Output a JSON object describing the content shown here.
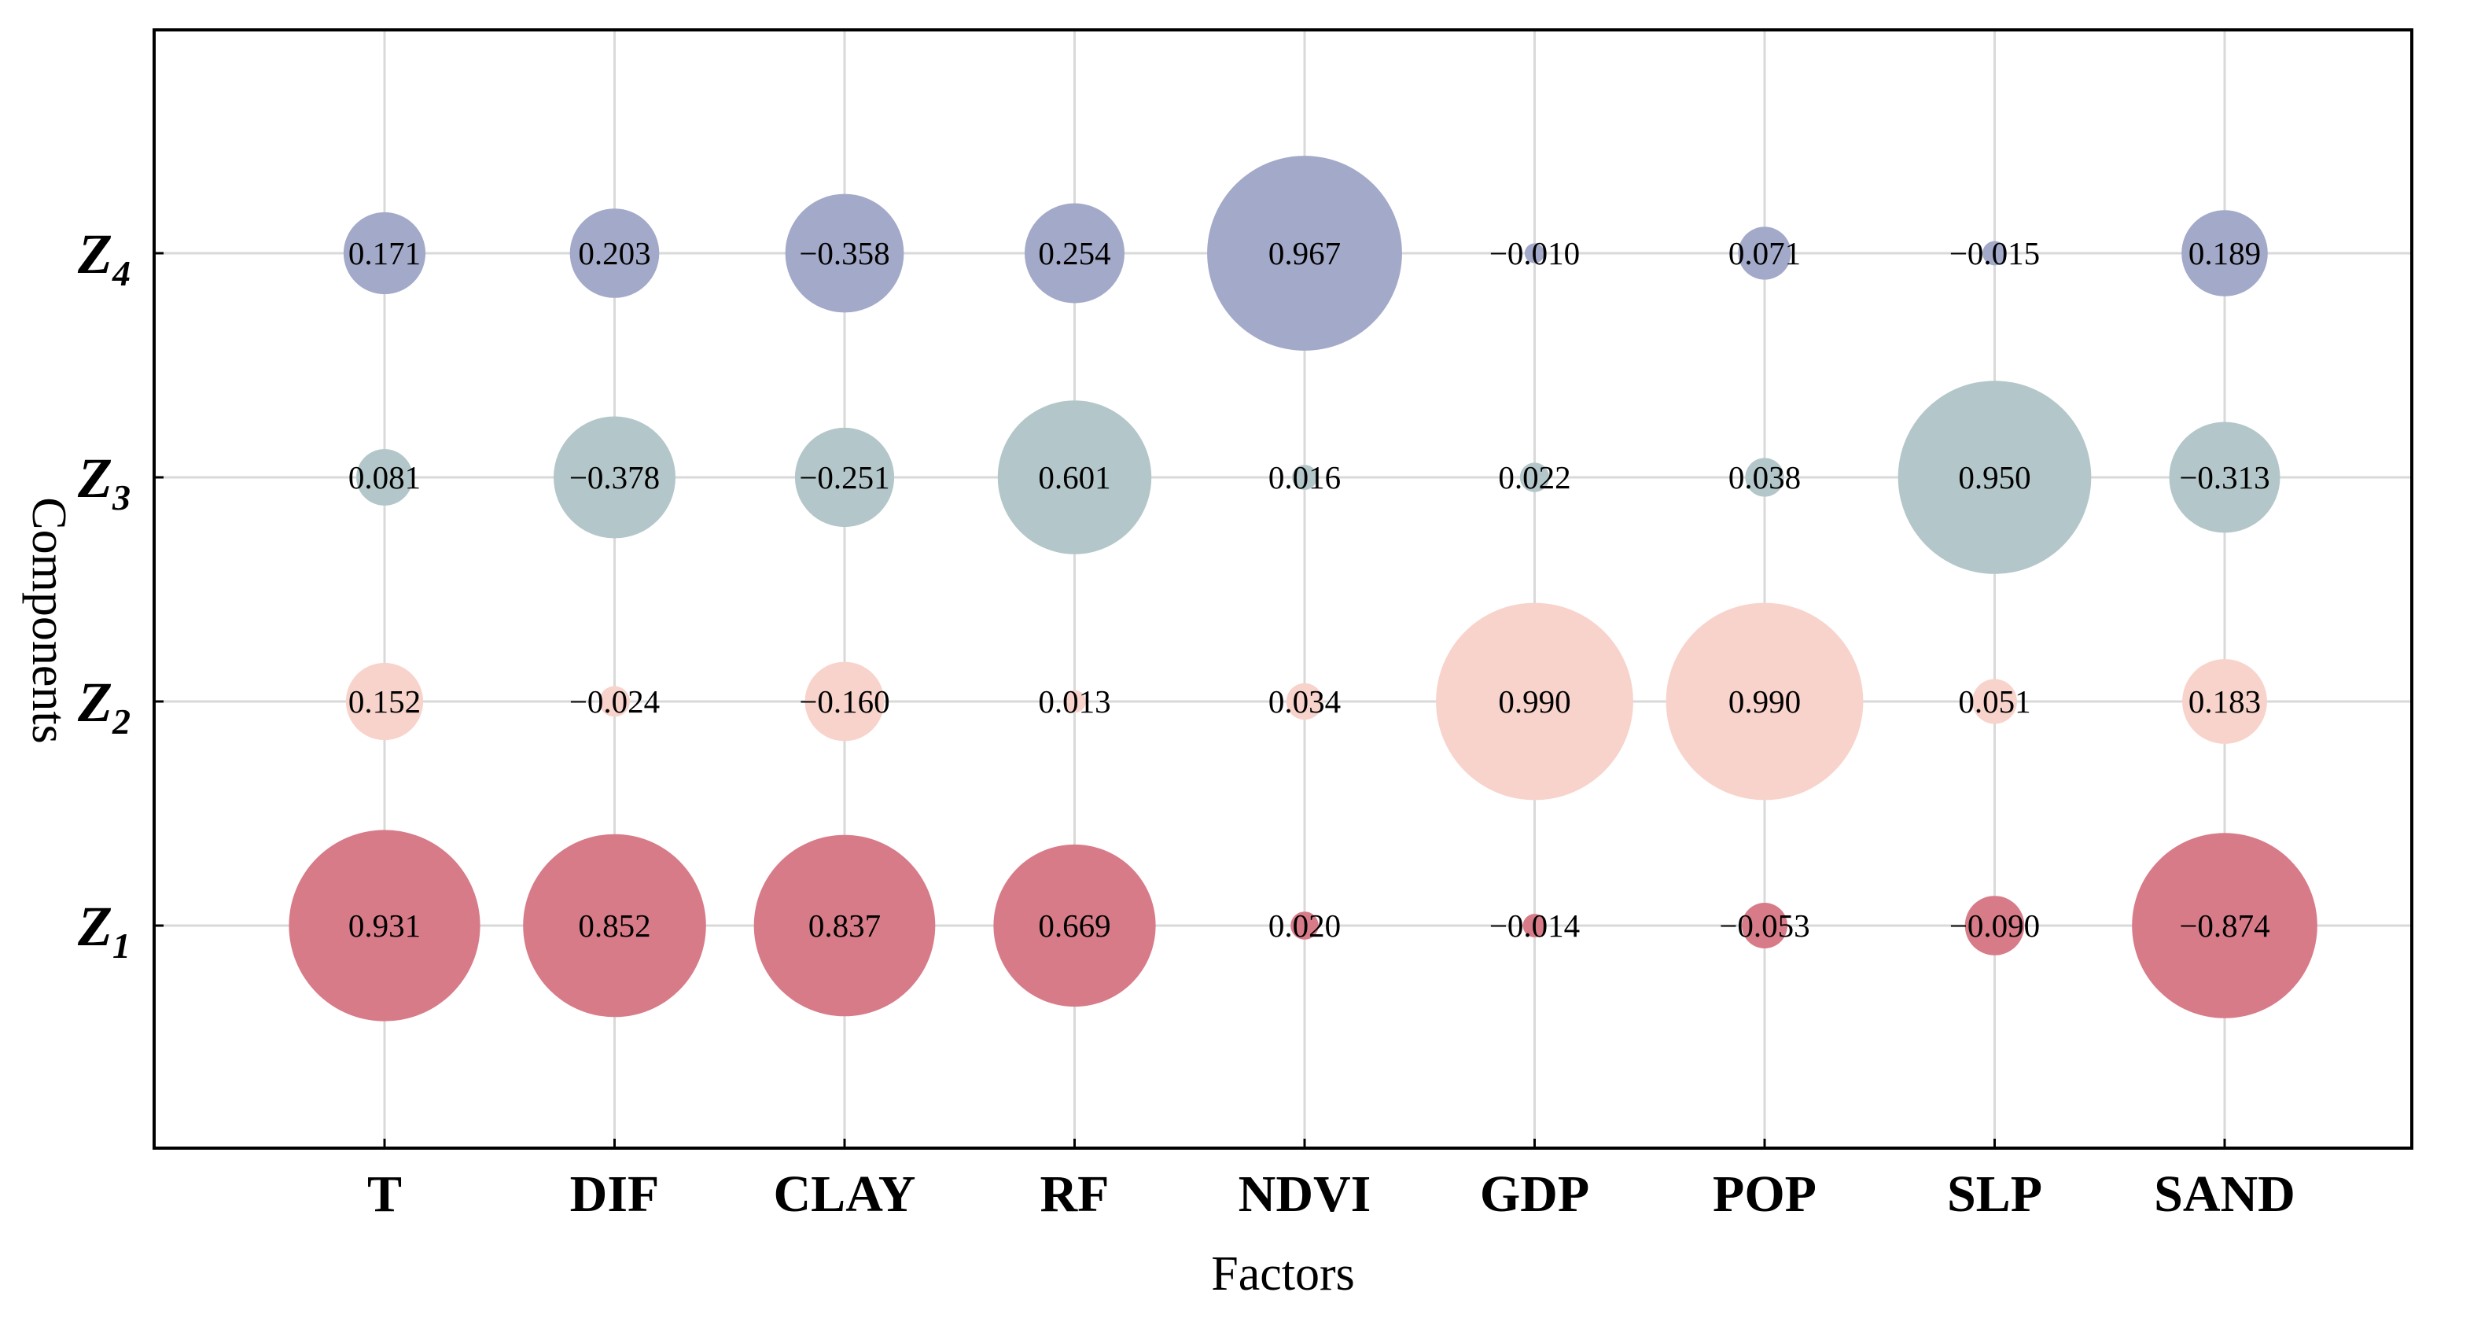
{
  "chart_data": {
    "type": "bubble-matrix",
    "title": "",
    "xlabel": "Factors",
    "ylabel": "Components",
    "categories": [
      "T",
      "DIF",
      "CLAY",
      "RF",
      "NDVI",
      "GDP",
      "POP",
      "SLP",
      "SAND"
    ],
    "legend": "none",
    "grid": true,
    "series": [
      {
        "label_main": "Z",
        "label_sub": "1",
        "color": "#d87b88",
        "values": [
          0.931,
          0.852,
          0.837,
          0.669,
          0.02,
          -0.014,
          -0.053,
          -0.09,
          -0.874
        ],
        "labels": [
          "0.931",
          "0.852",
          "0.837",
          "0.669",
          "0.020",
          "−0.014",
          "−0.053",
          "−0.090",
          "−0.874"
        ]
      },
      {
        "label_main": "Z",
        "label_sub": "2",
        "color": "#f8d3cb",
        "values": [
          0.152,
          -0.024,
          -0.16,
          0.013,
          0.034,
          0.99,
          0.99,
          0.051,
          0.183
        ],
        "labels": [
          "0.152",
          "−0.024",
          "−0.160",
          "0.013",
          "0.034",
          "0.990",
          "0.990",
          "0.051",
          "0.183"
        ]
      },
      {
        "label_main": "Z",
        "label_sub": "3",
        "color": "#b3c6c9",
        "values": [
          0.081,
          -0.378,
          -0.251,
          0.601,
          0.016,
          0.022,
          0.038,
          0.95,
          -0.313
        ],
        "labels": [
          "0.081",
          "−0.378",
          "−0.251",
          "0.601",
          "0.016",
          "0.022",
          "0.038",
          "0.950",
          "−0.313"
        ]
      },
      {
        "label_main": "Z",
        "label_sub": "4",
        "color": "#a3a9c8",
        "values": [
          0.171,
          0.203,
          -0.358,
          0.254,
          0.967,
          -0.01,
          0.071,
          -0.015,
          0.189
        ],
        "labels": [
          "0.171",
          "0.203",
          "−0.358",
          "0.254",
          "0.967",
          "−0.010",
          "0.071",
          "−0.015",
          "0.189"
        ]
      }
    ]
  }
}
